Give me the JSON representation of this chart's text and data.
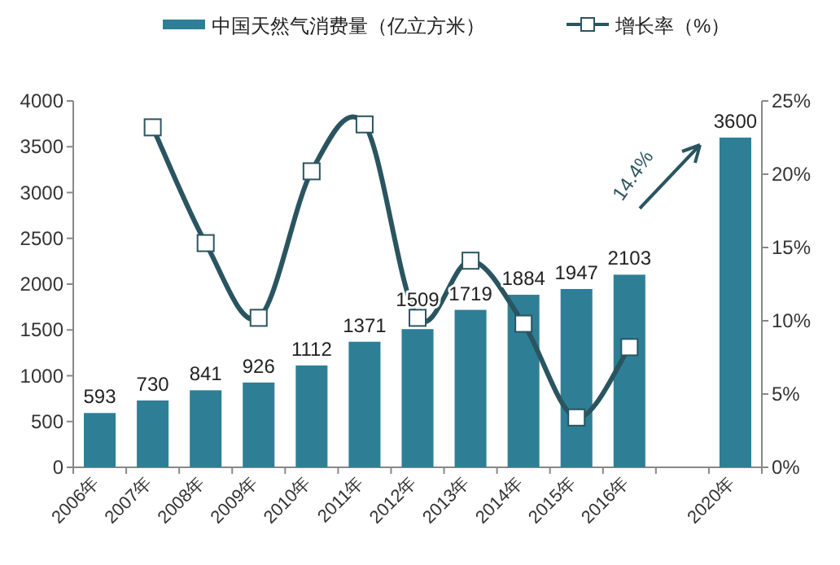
{
  "chart_data": {
    "type": "bar",
    "categories": [
      "2006年",
      "2007年",
      "2008年",
      "2009年",
      "2010年",
      "2011年",
      "2012年",
      "2013年",
      "2014年",
      "2015年",
      "2016年",
      null,
      "2020年"
    ],
    "series": [
      {
        "name": "中国天然气消费量（亿立方米）",
        "color": "#2e7f96",
        "values": [
          593,
          730,
          841,
          926,
          1112,
          1371,
          1509,
          1719,
          1884,
          1947,
          2103,
          null,
          3600
        ],
        "value_labels": [
          "593",
          "730",
          "841",
          "926",
          "1112",
          "1371",
          "1509",
          "1719",
          "1884",
          "1947",
          "2103",
          null,
          "3600"
        ]
      },
      {
        "name": "增长率（%）",
        "type": "line",
        "axis": "y2",
        "color": "#2a5560",
        "marker": "square",
        "values": [
          null,
          23.2,
          15.3,
          10.2,
          20.2,
          23.4,
          10.2,
          14.1,
          9.8,
          3.4,
          8.2,
          null,
          null
        ]
      }
    ],
    "ylim": [
      0,
      4000
    ],
    "yticks": [
      0,
      500,
      1000,
      1500,
      2000,
      2500,
      3000,
      3500,
      4000
    ],
    "y2lim": [
      0,
      25
    ],
    "y2ticks": [
      {
        "value": 0,
        "label": "0%"
      },
      {
        "value": 5,
        "label": "5%"
      },
      {
        "value": 10,
        "label": "10%"
      },
      {
        "value": 15,
        "label": "15%"
      },
      {
        "value": 20,
        "label": "20%"
      },
      {
        "value": 25,
        "label": "25%"
      }
    ],
    "annotations": [
      "14.4%"
    ],
    "legend": "top",
    "grid": false
  }
}
